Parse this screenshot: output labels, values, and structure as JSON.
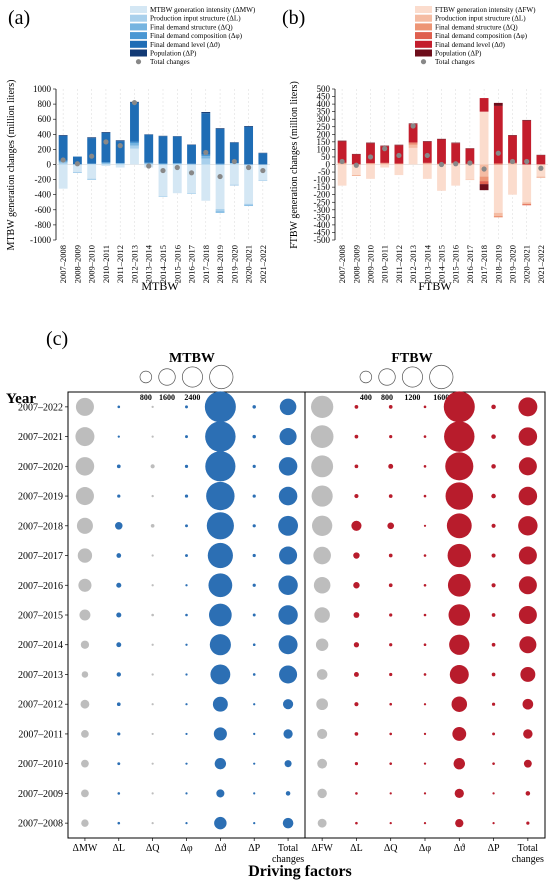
{
  "colors": {
    "mtbw": [
      "#d4e7f4",
      "#a9d0ec",
      "#76b4e0",
      "#4a97d3",
      "#1f6db5",
      "#123a75"
    ],
    "ftbw": [
      "#fbdccd",
      "#f5bca3",
      "#ed9575",
      "#df5f4e",
      "#c31d2c",
      "#6d0d1a"
    ],
    "total": "#888888",
    "bubble_gray": "#bdbdbd",
    "bubble_blue": "#2c6fb4",
    "bubble_red": "#b81c2c"
  },
  "chart_data": [
    {
      "type": "bar",
      "panel_label": "(a)",
      "title": "",
      "xlabel": "MTBW",
      "ylabel": "MTBW generation changes (million liters)",
      "ylim": [
        -1000,
        1000
      ],
      "yticks": [
        -1000,
        -800,
        -600,
        -400,
        -200,
        0,
        200,
        400,
        600,
        800,
        1000
      ],
      "legend_position": "top-right",
      "categories": [
        "2007–2008",
        "2008–2009",
        "2009–2010",
        "2010–2011",
        "2011–2012",
        "2012–2013",
        "2013–2014",
        "2014–2015",
        "2015–2016",
        "2016–2017",
        "2017–2018",
        "2018–2019",
        "2019–2020",
        "2020–2021",
        "2021–2022"
      ],
      "series": [
        {
          "name": "MTBW generation intensity (ΔMW)",
          "values": [
            -320,
            -100,
            -190,
            -20,
            -40,
            210,
            -40,
            -420,
            -380,
            -380,
            -480,
            -590,
            -270,
            -520,
            -210
          ]
        },
        {
          "name": "Production input structure (ΔL)",
          "values": [
            25,
            -5,
            10,
            10,
            10,
            40,
            10,
            -10,
            5,
            -10,
            80,
            -30,
            15,
            -20,
            0
          ]
        },
        {
          "name": "Final demand structure (ΔQ)",
          "values": [
            15,
            -5,
            -10,
            10,
            5,
            30,
            5,
            5,
            10,
            5,
            30,
            -20,
            5,
            -10,
            -5
          ]
        },
        {
          "name": "Final demand composition (Δφ)",
          "values": [
            10,
            5,
            0,
            10,
            5,
            20,
            10,
            10,
            5,
            5,
            20,
            10,
            -5,
            0,
            0
          ]
        },
        {
          "name": "Final demand level (Δϑ)",
          "values": [
            330,
            100,
            340,
            390,
            290,
            520,
            370,
            360,
            350,
            250,
            550,
            460,
            270,
            500,
            150
          ]
        },
        {
          "name": "Population (ΔP)",
          "values": [
            10,
            0,
            10,
            10,
            10,
            10,
            5,
            5,
            5,
            5,
            15,
            10,
            5,
            10,
            5
          ]
        }
      ],
      "total": [
        60,
        10,
        110,
        300,
        250,
        820,
        -20,
        -80,
        -40,
        -110,
        160,
        -160,
        40,
        -40,
        -80
      ]
    },
    {
      "type": "bar",
      "panel_label": "(b)",
      "title": "",
      "xlabel": "FTBW",
      "ylabel": "FTBW generation changes (million liters)",
      "ylim": [
        -500,
        500
      ],
      "yticks": [
        -500,
        -450,
        -400,
        -350,
        -300,
        -250,
        -200,
        -150,
        -100,
        -50,
        0,
        50,
        100,
        150,
        200,
        250,
        300,
        350,
        400,
        450,
        500
      ],
      "legend_position": "top-right",
      "categories": [
        "2007–2008",
        "2008–2009",
        "2009–2010",
        "2010–2011",
        "2011–2012",
        "2012–2013",
        "2013–2014",
        "2014–2015",
        "2015–2016",
        "2016–2017",
        "2017–2018",
        "2018–2019",
        "2019–2020",
        "2020–2021",
        "2021–2022"
      ],
      "series": [
        {
          "name": "FTBW generation intensity (ΔFW)",
          "values": [
            -140,
            -70,
            -95,
            -20,
            -70,
            110,
            -95,
            -170,
            -140,
            -100,
            350,
            -320,
            -200,
            -250,
            -80
          ]
        },
        {
          "name": "Production input structure (ΔL)",
          "values": [
            5,
            -3,
            5,
            5,
            3,
            20,
            5,
            -2,
            5,
            -3,
            -80,
            -20,
            5,
            -10,
            -5
          ]
        },
        {
          "name": "Final demand structure (ΔQ)",
          "values": [
            5,
            -2,
            3,
            3,
            2,
            10,
            3,
            3,
            3,
            3,
            -30,
            -10,
            3,
            -5,
            -3
          ]
        },
        {
          "name": "Final demand composition (Δφ)",
          "values": [
            3,
            2,
            2,
            3,
            2,
            7,
            3,
            3,
            3,
            2,
            -20,
            8,
            3,
            -5,
            2
          ]
        },
        {
          "name": "Final demand level (Δϑ)",
          "values": [
            140,
            65,
            130,
            110,
            120,
            120,
            140,
            160,
            130,
            100,
            90,
            380,
            180,
            290,
            60
          ]
        },
        {
          "name": "Population (ΔP)",
          "values": [
            5,
            3,
            5,
            4,
            4,
            5,
            4,
            4,
            4,
            3,
            -40,
            20,
            4,
            5,
            2
          ]
        }
      ],
      "total": [
        20,
        -5,
        50,
        105,
        60,
        255,
        60,
        0,
        5,
        10,
        -30,
        75,
        20,
        20,
        -25
      ]
    },
    {
      "type": "scatter",
      "panel_label": "(c)",
      "xlabel": "Driving factors",
      "ylabel": "Year",
      "rows": [
        "2007–2022",
        "2007–2021",
        "2007–2020",
        "2007–2019",
        "2007–2018",
        "2007–2017",
        "2007–2016",
        "2007–2015",
        "2007–2014",
        "2007–2013",
        "2007–2012",
        "2007–2011",
        "2007–2010",
        "2007–2009",
        "2007–2008"
      ],
      "panels": [
        {
          "title": "MTBW",
          "legend_values": [
            800,
            1600,
            2400,
            3200
          ],
          "max_value": 3200,
          "columns": [
            "ΔMW",
            "ΔL",
            "ΔQ",
            "Δφ",
            "Δϑ",
            "ΔP",
            "Total changes"
          ],
          "column_colors": [
            "gray",
            "blue",
            "gray",
            "blue",
            "blue",
            "blue",
            "blue"
          ],
          "values": [
            [
              1900,
              40,
              30,
              50,
              5600,
              70,
              1600
            ],
            [
              2100,
              30,
              20,
              50,
              5400,
              70,
              1700
            ],
            [
              2000,
              80,
              100,
              60,
              5300,
              60,
              2000
            ],
            [
              1900,
              60,
              30,
              60,
              4700,
              60,
              2000
            ],
            [
              1500,
              330,
              80,
              50,
              4300,
              60,
              2300
            ],
            [
              1200,
              130,
              20,
              50,
              3700,
              60,
              1900
            ],
            [
              1000,
              150,
              30,
              30,
              3300,
              60,
              2200
            ],
            [
              700,
              150,
              40,
              40,
              3000,
              50,
              2200
            ],
            [
              400,
              140,
              30,
              30,
              2600,
              40,
              2100
            ],
            [
              250,
              110,
              30,
              30,
              2300,
              40,
              1900
            ],
            [
              450,
              80,
              20,
              20,
              1300,
              30,
              600
            ],
            [
              350,
              60,
              20,
              20,
              1000,
              30,
              500
            ],
            [
              350,
              50,
              15,
              20,
              750,
              20,
              290
            ],
            [
              350,
              40,
              15,
              15,
              380,
              20,
              120
            ],
            [
              320,
              40,
              15,
              15,
              900,
              10,
              650
            ]
          ]
        },
        {
          "title": "FTBW",
          "legend_values": [
            400,
            800,
            1200,
            1600
          ],
          "max_value": 1600,
          "columns": [
            "ΔFW",
            "ΔL",
            "ΔQ",
            "Δφ",
            "Δϑ",
            "ΔP",
            "Total changes"
          ],
          "column_colors": [
            "gray",
            "red",
            "red",
            "red",
            "red",
            "red",
            "red"
          ],
          "values": [
            [
              1450,
              40,
              40,
              20,
              2800,
              60,
              1050
            ],
            [
              1500,
              40,
              30,
              20,
              2700,
              60,
              1000
            ],
            [
              1400,
              40,
              70,
              20,
              2300,
              60,
              950
            ],
            [
              1300,
              50,
              40,
              20,
              2200,
              60,
              1000
            ],
            [
              1200,
              300,
              130,
              10,
              1800,
              50,
              1100
            ],
            [
              900,
              120,
              40,
              20,
              1600,
              50,
              950
            ],
            [
              800,
              120,
              40,
              20,
              1500,
              50,
              950
            ],
            [
              700,
              100,
              30,
              20,
              1350,
              40,
              950
            ],
            [
              450,
              80,
              30,
              20,
              1200,
              40,
              850
            ],
            [
              330,
              70,
              30,
              20,
              1050,
              40,
              650
            ],
            [
              400,
              50,
              20,
              15,
              700,
              30,
              330
            ],
            [
              300,
              40,
              20,
              15,
              560,
              25,
              260
            ],
            [
              280,
              30,
              20,
              15,
              380,
              20,
              180
            ],
            [
              260,
              20,
              15,
              15,
              250,
              15,
              60
            ],
            [
              230,
              20,
              15,
              10,
              200,
              10,
              30
            ]
          ]
        }
      ]
    }
  ]
}
